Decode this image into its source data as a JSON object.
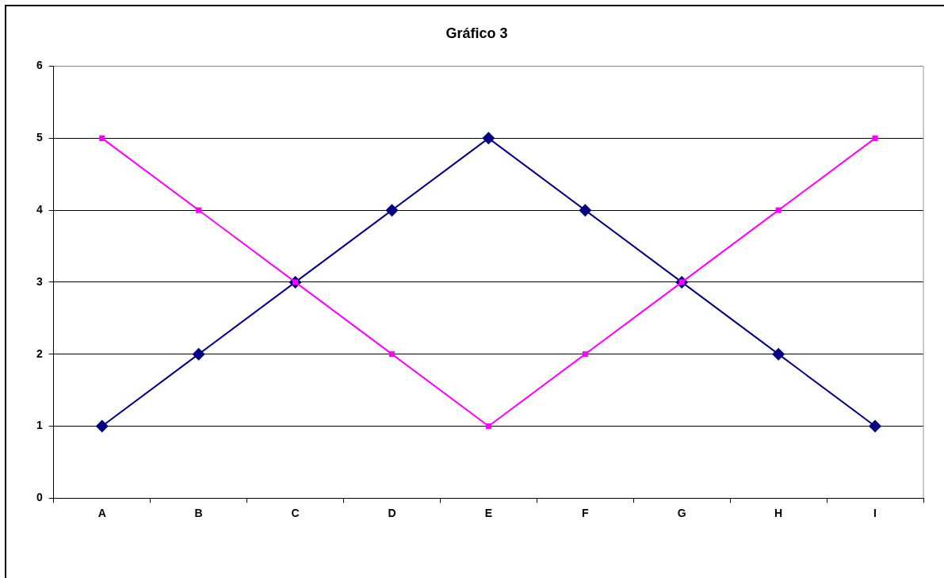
{
  "chart_data": {
    "type": "line",
    "title": "Gráfico 3",
    "categories": [
      "A",
      "B",
      "C",
      "D",
      "E",
      "F",
      "G",
      "H",
      "I"
    ],
    "series": [
      {
        "color": "#000080",
        "marker": "diamond",
        "values": [
          1,
          2,
          3,
          4,
          5,
          4,
          3,
          2,
          1
        ]
      },
      {
        "color": "#ff00ff",
        "marker": "square",
        "values": [
          5,
          4,
          3,
          2,
          1,
          2,
          3,
          4,
          5
        ]
      }
    ],
    "ylim": [
      0,
      6
    ],
    "yticks": [
      0,
      1,
      2,
      3,
      4,
      5,
      6
    ],
    "grid": "y",
    "legend": false,
    "line_style": "solid"
  }
}
